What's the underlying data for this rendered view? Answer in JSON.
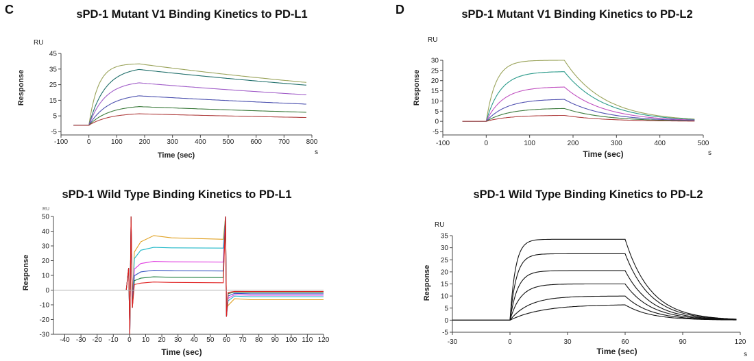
{
  "panel_labels": {
    "C": "C",
    "D": "D"
  },
  "chart_data": [
    {
      "id": "top-left",
      "type": "line",
      "title": "sPD-1 Mutant V1 Binding Kinetics to PD-L1",
      "xlabel": "Time (sec)",
      "ylabel": "Response",
      "y_unit": "RU",
      "x_unit": "s",
      "xlim": [
        -100,
        800
      ],
      "ylim": [
        -5,
        45
      ],
      "xticks": [
        -100,
        0,
        100,
        200,
        300,
        400,
        500,
        600,
        700,
        800
      ],
      "yticks": [
        -5,
        5,
        15,
        25,
        35,
        45
      ],
      "grid": false,
      "model": "association_dissociation",
      "baseline": {
        "x_start": -55,
        "value": -1
      },
      "t_injection_start": 0,
      "t_injection_end": 180,
      "x_end": 780,
      "series": [
        {
          "plateau": 38.5,
          "k_on": 0.03,
          "k_off": 0.0006,
          "color": "#9aa35a"
        },
        {
          "plateau": 36.5,
          "k_on": 0.017,
          "k_off": 0.00055,
          "color": "#1f6e6a"
        },
        {
          "plateau": 27.5,
          "k_on": 0.017,
          "k_off": 0.00055,
          "color": "#a05cc8"
        },
        {
          "plateau": 19.5,
          "k_on": 0.014,
          "k_off": 0.00055,
          "color": "#4a4fae"
        },
        {
          "plateau": 12.0,
          "k_on": 0.014,
          "k_off": 0.0006,
          "color": "#3b7a3b"
        },
        {
          "plateau": 7.0,
          "k_on": 0.014,
          "k_off": 0.00065,
          "color": "#b04040"
        }
      ]
    },
    {
      "id": "top-right",
      "type": "line",
      "title": "sPD-1 Mutant V1 Binding Kinetics to PD-L2",
      "xlabel": "Time (sec)",
      "ylabel": "Response",
      "y_unit": "RU",
      "x_unit": "s",
      "xlim": [
        -100,
        500
      ],
      "ylim": [
        -5,
        30
      ],
      "xticks": [
        -100,
        0,
        100,
        200,
        300,
        400,
        500
      ],
      "yticks": [
        -5,
        0,
        5,
        10,
        15,
        20,
        25,
        30
      ],
      "grid": false,
      "model": "association_dissociation",
      "baseline": {
        "x_start": -55,
        "value": 0
      },
      "t_injection_start": 0,
      "t_injection_end": 180,
      "x_end": 480,
      "series": [
        {
          "plateau": 30.0,
          "k_on": 0.045,
          "k_off": 0.011,
          "color": "#9aa35a"
        },
        {
          "plateau": 24.5,
          "k_on": 0.03,
          "k_off": 0.011,
          "color": "#2a9a8a"
        },
        {
          "plateau": 17.0,
          "k_on": 0.026,
          "k_off": 0.011,
          "color": "#c050c0"
        },
        {
          "plateau": 11.0,
          "k_on": 0.022,
          "k_off": 0.011,
          "color": "#5050b0"
        },
        {
          "plateau": 6.5,
          "k_on": 0.02,
          "k_off": 0.011,
          "color": "#3b7a3b"
        },
        {
          "plateau": 3.0,
          "k_on": 0.02,
          "k_off": 0.011,
          "color": "#b04040"
        }
      ]
    },
    {
      "id": "bottom-left",
      "type": "line",
      "title": "sPD-1 Wild Type Binding Kinetics to PD-L1",
      "xlabel": "Time (sec)",
      "ylabel": "Response",
      "y_unit": "RU",
      "x_unit": "",
      "xlim": [
        -47,
        120
      ],
      "ylim": [
        -30,
        50
      ],
      "xticks": [
        -40,
        -30,
        -20,
        -10,
        0,
        10,
        20,
        30,
        40,
        50,
        60,
        70,
        80,
        90,
        100,
        110,
        120
      ],
      "yticks": [
        -30,
        -20,
        -10,
        0,
        10,
        20,
        30,
        40,
        50
      ],
      "grid": false,
      "model": "square_wave",
      "t_injection_start": 1,
      "t_injection_end": 60,
      "x_start": -47,
      "x_end": 120,
      "series": [
        {
          "plateau": 34.5,
          "post": -6.5,
          "peak": 37,
          "spike_up": 50,
          "spike_down": -22,
          "color": "#e0a020"
        },
        {
          "plateau": 28.5,
          "post": -4.5,
          "peak": 29,
          "spike_up": 50,
          "spike_down": -30,
          "color": "#20b8c8"
        },
        {
          "plateau": 19.0,
          "post": -3.5,
          "peak": 19.5,
          "spike_up": 50,
          "spike_down": -30,
          "color": "#e040e0"
        },
        {
          "plateau": 13.0,
          "post": -2.5,
          "peak": 13.5,
          "spike_up": 50,
          "spike_down": -30,
          "color": "#3050c0"
        },
        {
          "plateau": 8.5,
          "post": -1.5,
          "peak": 9,
          "spike_up": 50,
          "spike_down": -30,
          "color": "#208040"
        },
        {
          "plateau": 5.0,
          "post": -1.0,
          "peak": 5.5,
          "spike_up": 50,
          "spike_down": -30,
          "color": "#e02020"
        },
        {
          "plateau": 0.0,
          "post": 0.0,
          "peak": 0,
          "spike_up": 0,
          "spike_down": 0,
          "color": "#b0b0b0"
        }
      ]
    },
    {
      "id": "bottom-right",
      "type": "line",
      "title": "sPD-1 Wild Type Binding Kinetics to PD-L2",
      "xlabel": "Time (sec)",
      "ylabel": "Response",
      "y_unit": "RU",
      "x_unit": "s",
      "xlim": [
        -30,
        120
      ],
      "ylim": [
        -5,
        35
      ],
      "xticks": [
        -30,
        0,
        30,
        60,
        90,
        120
      ],
      "yticks": [
        -5,
        0,
        5,
        10,
        15,
        20,
        25,
        30,
        35
      ],
      "grid": false,
      "model": "association_dissociation",
      "baseline": {
        "x_start": -30,
        "value": 0
      },
      "t_injection_start": 0,
      "t_injection_end": 60,
      "x_end": 118,
      "series": [
        {
          "plateau": 33.5,
          "k_on": 0.35,
          "k_off": 0.075,
          "color": "#111111",
          "fit": true
        },
        {
          "plateau": 27.5,
          "k_on": 0.3,
          "k_off": 0.075,
          "color": "#111111",
          "fit": true
        },
        {
          "plateau": 20.5,
          "k_on": 0.25,
          "k_off": 0.075,
          "color": "#111111",
          "fit": true
        },
        {
          "plateau": 15.0,
          "k_on": 0.18,
          "k_off": 0.075,
          "color": "#111111",
          "fit": true
        },
        {
          "plateau": 10.0,
          "k_on": 0.1,
          "k_off": 0.075,
          "color": "#111111",
          "fit": true
        },
        {
          "plateau": 6.5,
          "k_on": 0.06,
          "k_off": 0.075,
          "color": "#111111",
          "fit": true
        }
      ]
    }
  ]
}
